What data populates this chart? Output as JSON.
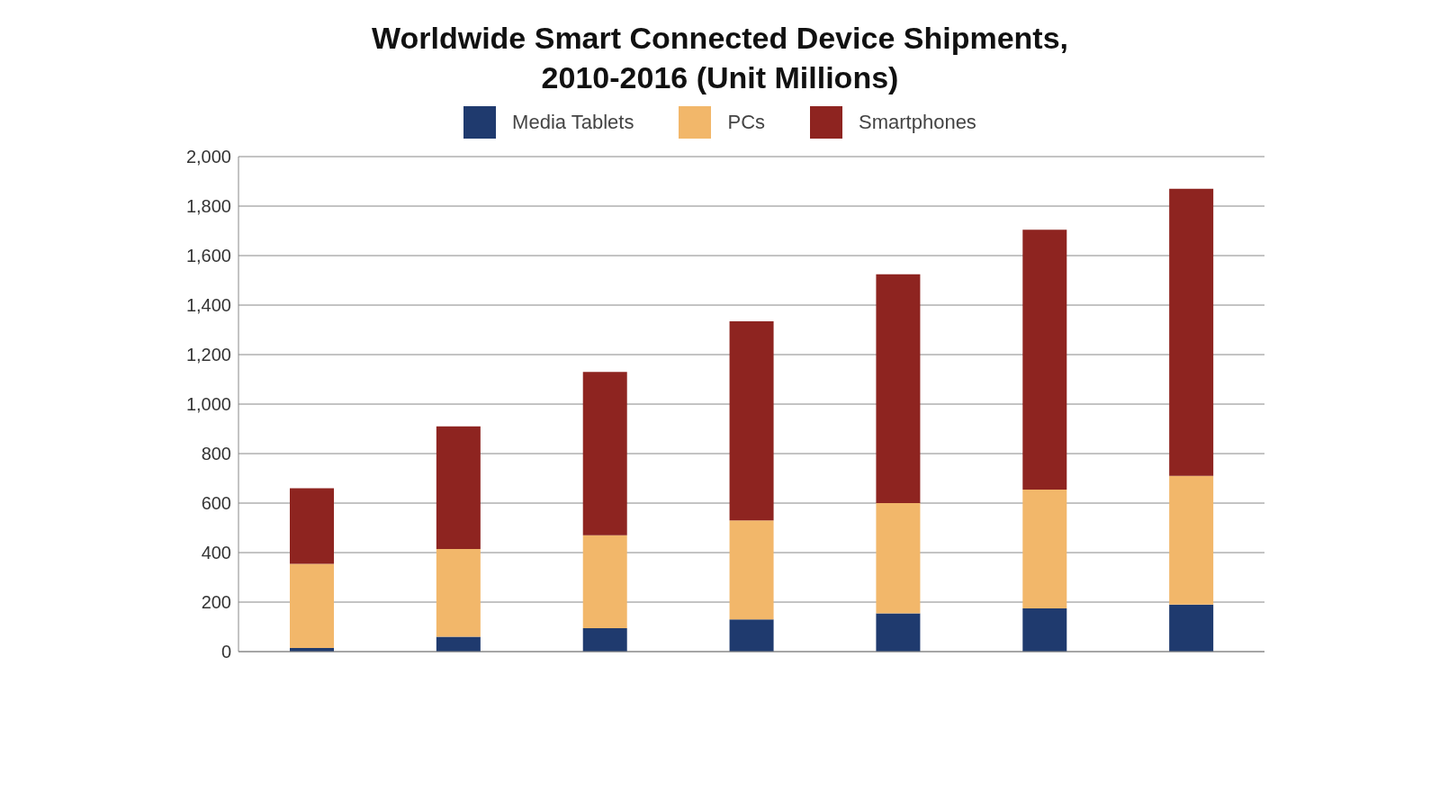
{
  "chart_data": {
    "type": "bar",
    "title": "Worldwide Smart Connected Device Shipments,\n2010-2016 (Unit Millions)",
    "categories": [
      null,
      null,
      null,
      null,
      null,
      null,
      null
    ],
    "stacked": true,
    "series": [
      {
        "name": "Media Tablets",
        "color": "#1f3a6e",
        "values": [
          15,
          60,
          95,
          130,
          155,
          175,
          190
        ]
      },
      {
        "name": "PCs",
        "color": "#f2b76a",
        "values": [
          340,
          355,
          375,
          400,
          445,
          480,
          520
        ]
      },
      {
        "name": "Smartphones",
        "color": "#8e2420",
        "values": [
          305,
          495,
          660,
          805,
          925,
          1050,
          1160
        ]
      }
    ],
    "ylim": [
      0,
      2000
    ],
    "yticks": [
      {
        "value": 0,
        "label": "0"
      },
      {
        "value": 200,
        "label": "200"
      },
      {
        "value": 400,
        "label": "400"
      },
      {
        "value": 600,
        "label": "600"
      },
      {
        "value": 800,
        "label": "800"
      },
      {
        "value": 1000,
        "label": "1,000"
      },
      {
        "value": 1200,
        "label": "1,200"
      },
      {
        "value": 1400,
        "label": "1,400"
      },
      {
        "value": 1600,
        "label": "1,600"
      },
      {
        "value": 1800,
        "label": "1,800"
      },
      {
        "value": 2000,
        "label": "2,000"
      }
    ],
    "grid": "y",
    "legend": "top"
  }
}
